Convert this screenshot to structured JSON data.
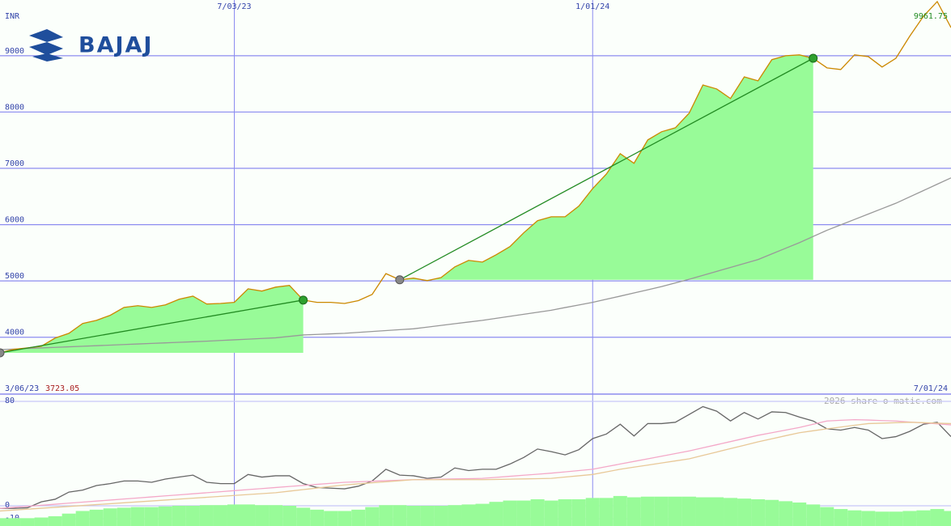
{
  "chart_data": [
    {
      "type": "line",
      "logo": "BAJAJ",
      "ylabel": "INR",
      "categories": [
        "3/06/23",
        null,
        null,
        null,
        null,
        null,
        null,
        null,
        null,
        null,
        null,
        null,
        null,
        null,
        null,
        null,
        null,
        "7/03/23",
        null,
        null,
        null,
        null,
        null,
        null,
        null,
        null,
        null,
        null,
        null,
        null,
        null,
        null,
        null,
        null,
        null,
        null,
        null,
        null,
        null,
        null,
        null,
        null,
        null,
        "1/01/24",
        null,
        null,
        null,
        null,
        null,
        null,
        null,
        null,
        null,
        null,
        null,
        null,
        null,
        null,
        null,
        null,
        null,
        null,
        null,
        null,
        null,
        null,
        null,
        null,
        null,
        "7/01/24"
      ],
      "series": [
        {
          "color": "#cc8800",
          "values": [
            3723.05,
            3785,
            3810,
            3840,
            3985,
            4070,
            4245,
            4300,
            4390,
            4530,
            4560,
            4530,
            4575,
            4675,
            4730,
            4590,
            4600,
            4620,
            4860,
            4820,
            4890,
            4920,
            4660,
            4620,
            4620,
            4600,
            4650,
            4760,
            5130,
            5020,
            5050,
            5005,
            5060,
            5250,
            5365,
            5335,
            5465,
            5610,
            5855,
            6070,
            6140,
            6140,
            6330,
            6640,
            6900,
            7260,
            7090,
            7505,
            7650,
            7720,
            7980,
            8480,
            8410,
            8240,
            8625,
            8555,
            8930,
            9000,
            9015,
            8955,
            8785,
            8755,
            9015,
            8985,
            8800,
            8955,
            9345,
            9700,
            9961.75,
            9500
          ]
        },
        {
          "color": "#999999",
          "values": [
            3780,
            3790,
            3800,
            3810,
            3820,
            3830,
            3840,
            3850,
            3860,
            3870,
            3880,
            3890,
            3900,
            3910,
            3920,
            3930,
            3942,
            3954,
            3966,
            3978,
            3990,
            4015,
            4040,
            4050,
            4060,
            4070,
            4086,
            4102,
            4118,
            4134,
            4150,
            4180,
            4210,
            4240,
            4270,
            4300,
            4336,
            4372,
            4408,
            4444,
            4480,
            4527,
            4573,
            4620,
            4675,
            4730,
            4787,
            4843,
            4900,
            4965,
            5030,
            5100,
            5170,
            5240,
            5310,
            5380,
            5480,
            5580,
            5680,
            5790,
            5900,
            5996,
            6092,
            6188,
            6284,
            6380,
            6493,
            6605,
            6718,
            6830
          ]
        }
      ],
      "signals": [
        {
          "start": 0,
          "end": 22
        },
        {
          "start": 29,
          "end": 59
        }
      ],
      "fill_color": "#98fb98",
      "trend_color": "#228b22",
      "ylim": [
        2990,
        9990
      ],
      "yticks": [
        4000,
        5000,
        6000,
        7000,
        8000,
        9000
      ],
      "grid": true
    },
    {
      "type": "line",
      "annotation": "2026 share-o-matic.com",
      "bars": {
        "color": "#98fb98",
        "values": [
          -9.5,
          -9.5,
          -9.5,
          -9,
          -8,
          -6,
          -4,
          -3,
          -2,
          -1.5,
          -1,
          -1,
          -0.5,
          0,
          0,
          0.5,
          0.5,
          1,
          1,
          0.5,
          0.5,
          0,
          -1.5,
          -3,
          -4,
          -4,
          -3,
          -1,
          0.5,
          0.5,
          0,
          0,
          0,
          0.5,
          1,
          1.5,
          3,
          4,
          4,
          5,
          4,
          5,
          5,
          6,
          6,
          7.5,
          6.5,
          7,
          7,
          7,
          7,
          6.5,
          6.5,
          6,
          5.5,
          5,
          4.5,
          3.5,
          2.5,
          1,
          -1,
          -2.5,
          -3.5,
          -4,
          -4.5,
          -4.5,
          -4,
          -3.5,
          -2.5,
          -4
        ]
      },
      "series": [
        {
          "color": "#e8c898",
          "values": [
            -4,
            -3.3,
            -2.6,
            -1.9,
            -1.2,
            -0.5,
            0.2,
            0.9,
            1.6,
            2.3,
            3,
            3.7,
            4.4,
            5.1,
            5.8,
            6.5,
            7.2,
            7.9,
            8.6,
            9.3,
            10,
            11.2,
            12.4,
            13.6,
            14.8,
            16,
            16.8,
            17.6,
            18.4,
            19.2,
            20,
            20,
            20,
            20,
            20,
            20,
            20.2,
            20.4,
            20.6,
            20.8,
            21,
            22,
            23,
            24,
            26,
            28,
            29.6,
            31.2,
            32.8,
            34.4,
            36,
            38.6,
            41.2,
            43.8,
            46.4,
            49,
            51.3,
            53.7,
            56,
            57.5,
            59,
            60.3,
            61.7,
            63,
            63.3,
            63.7,
            64,
            63.7,
            63.3,
            63
          ]
        },
        {
          "color": "#f4a8c8",
          "values": [
            -2,
            -1.2,
            -0.4,
            0.4,
            1.2,
            2,
            2.8,
            3.6,
            4.4,
            5.2,
            6,
            6.8,
            7.6,
            8.4,
            9.2,
            10,
            10.8,
            11.6,
            12.4,
            13.2,
            14,
            14.8,
            15.6,
            16.4,
            17.2,
            18,
            18.4,
            18.8,
            19.2,
            19.6,
            20,
            20.2,
            20.4,
            20.6,
            20.8,
            21,
            21.8,
            22.6,
            23.4,
            24.2,
            25,
            26,
            27,
            28,
            30,
            32,
            34,
            36,
            38,
            40,
            42,
            44.4,
            46.8,
            49.2,
            51.6,
            54,
            56,
            58,
            60,
            62.5,
            65,
            65.5,
            66,
            65.7,
            65.3,
            65,
            64.2,
            63.5,
            62.8,
            62
          ]
        },
        {
          "color": "#666666",
          "values": [
            -2,
            -2,
            -1.5,
            3,
            5,
            10.5,
            12,
            15.5,
            17,
            19,
            19,
            18,
            20.5,
            22,
            23.5,
            18,
            17,
            17,
            24,
            22,
            23,
            23,
            17,
            14,
            13.5,
            13,
            15,
            19,
            28,
            23.5,
            23,
            21,
            22,
            29,
            27,
            28,
            28,
            32,
            37,
            43.5,
            41.5,
            39,
            43,
            51.5,
            55,
            62.5,
            53.5,
            63,
            63,
            64,
            70,
            76,
            72.5,
            65,
            71.5,
            66.5,
            72,
            71.5,
            68,
            65,
            59,
            58,
            60,
            58,
            51.5,
            53,
            57,
            62.5,
            64,
            53
          ]
        }
      ],
      "ylim": [
        -15.5,
        85.6
      ],
      "yticks": [
        -10,
        0,
        80
      ],
      "grid": true
    }
  ]
}
